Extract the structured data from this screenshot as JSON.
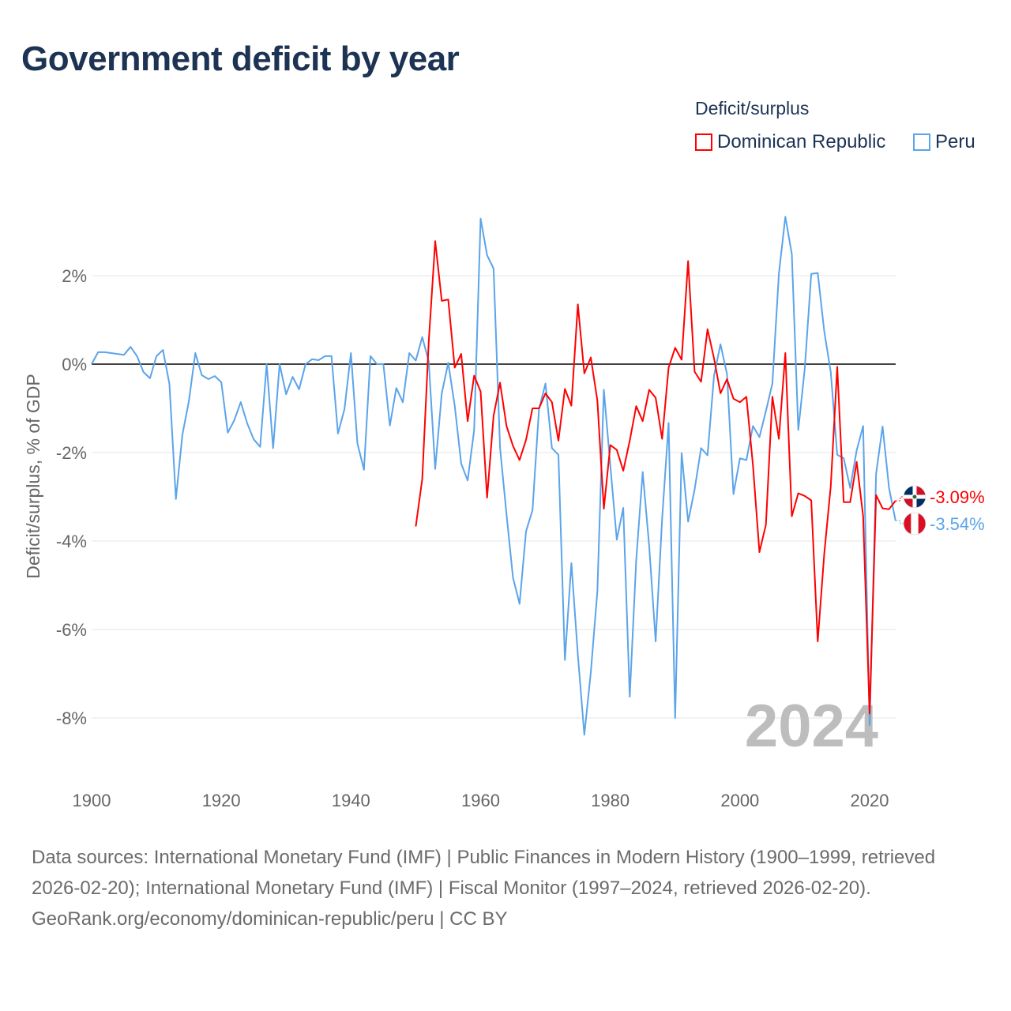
{
  "title": "Government deficit by year",
  "legend": {
    "title": "Deficit/surplus",
    "items": [
      {
        "label": "Dominican Republic",
        "color": "#ff0000"
      },
      {
        "label": "Peru",
        "color": "#5ba4ea"
      }
    ]
  },
  "watermark_year": "2024",
  "footer": {
    "sources": "Data sources: International Monetary Fund (IMF) | Public Finances in Modern History (1900–1999, retrieved 2026-02-20); International Monetary Fund (IMF) | Fiscal Monitor (1997–2024, retrieved 2026-02-20).",
    "credit": "GeoRank.org/economy/dominican-republic/peru | CC BY"
  },
  "chart_data": {
    "type": "line",
    "title": "Government deficit by year",
    "xlabel": "",
    "ylabel": "Deficit/surplus, % of GDP",
    "xlim": [
      1900,
      2024
    ],
    "ylim": [
      -9.2,
      3.6
    ],
    "x_ticks": [
      1900,
      1920,
      1940,
      1960,
      1980,
      2000,
      2020
    ],
    "x_tick_labels": [
      "1900",
      "1920",
      "1940",
      "1960",
      "1980",
      "2000",
      "2020"
    ],
    "y_ticks": [
      2,
      0,
      -2,
      -4,
      -6,
      -8
    ],
    "y_tick_labels": [
      "2%",
      "0%",
      "-2%",
      "-4%",
      "-6%",
      "-8%"
    ],
    "grid": true,
    "legend_position": "top-right",
    "series": [
      {
        "name": "Dominican Republic",
        "color": "#ff0000",
        "start_year": 1950,
        "end_label": "-3.09%",
        "values": [
          -3.67,
          -2.6,
          0.5,
          2.78,
          1.43,
          1.46,
          -0.08,
          0.23,
          -1.29,
          -0.26,
          -0.62,
          -3.02,
          -1.17,
          -0.42,
          -1.4,
          -1.85,
          -2.17,
          -1.71,
          -1.0,
          -1.0,
          -0.66,
          -0.86,
          -1.73,
          -0.56,
          -0.94,
          1.35,
          -0.21,
          0.15,
          -0.82,
          -3.27,
          -1.83,
          -1.94,
          -2.41,
          -1.73,
          -0.95,
          -1.29,
          -0.58,
          -0.76,
          -1.69,
          -0.08,
          0.37,
          0.1,
          2.33,
          -0.17,
          -0.4,
          0.79,
          0.13,
          -0.66,
          -0.34,
          -0.78,
          -0.86,
          -0.74,
          -2.29,
          -4.25,
          -3.63,
          -0.74,
          -1.69,
          0.25,
          -3.44,
          -2.92,
          -2.98,
          -3.08,
          -6.27,
          -4.3,
          -2.76,
          -0.06,
          -3.12,
          -3.12,
          -2.21,
          -3.44,
          -7.9,
          -2.96,
          -3.26,
          -3.28,
          -3.09
        ]
      },
      {
        "name": "Peru",
        "color": "#5ba4ea",
        "start_year": 1900,
        "end_label": "-3.54%",
        "values": [
          0,
          0.27,
          0.27,
          0.25,
          0.23,
          0.21,
          0.39,
          0.18,
          -0.18,
          -0.32,
          0.18,
          0.32,
          -0.45,
          -3.05,
          -1.6,
          -0.84,
          0.25,
          -0.25,
          -0.34,
          -0.27,
          -0.41,
          -1.55,
          -1.27,
          -0.86,
          -1.34,
          -1.7,
          -1.87,
          0,
          -1.9,
          0,
          -0.68,
          -0.29,
          -0.57,
          0,
          0.11,
          0.09,
          0.18,
          0.18,
          -1.57,
          -1.02,
          0.25,
          -1.79,
          -2.39,
          0.18,
          0,
          0,
          -1.39,
          -0.54,
          -0.86,
          0.25,
          0.08,
          0.61,
          0.06,
          -2.37,
          -0.66,
          0.03,
          -0.94,
          -2.25,
          -2.63,
          -1.49,
          3.29,
          2.46,
          2.16,
          -1.89,
          -3.4,
          -4.83,
          -5.42,
          -3.78,
          -3.3,
          -1.02,
          -0.44,
          -1.9,
          -2.05,
          -6.69,
          -4.5,
          -6.57,
          -8.38,
          -6.97,
          -5.14,
          -0.58,
          -2.29,
          -3.97,
          -3.25,
          -7.52,
          -4.43,
          -2.44,
          -4.11,
          -6.27,
          -3.5,
          -1.33,
          -8.0,
          -2.01,
          -3.56,
          -2.84,
          -1.9,
          -2.06,
          -0.26,
          0.45,
          -0.22,
          -2.94,
          -2.13,
          -2.17,
          -1.4,
          -1.65,
          -1.06,
          -0.44,
          2.04,
          3.33,
          2.49,
          -1.49,
          -0.1,
          2.04,
          2.06,
          0.75,
          -0.18,
          -2.05,
          -2.13,
          -2.8,
          -1.95,
          -1.4,
          -8.16,
          -2.48,
          -1.41,
          -2.8,
          -3.54
        ]
      }
    ]
  }
}
